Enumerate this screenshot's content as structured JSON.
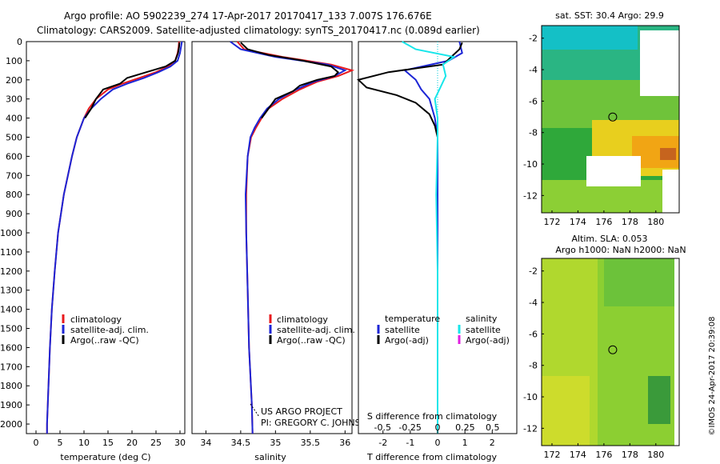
{
  "header": {
    "line1": "Argo profile: AO 5902239_274 17-Apr-2017 20170417_133 7.007S 176.676E",
    "line2": "Climatology: CARS2009. Satellite-adjusted climatology: synTS_20170417.nc (0.089d earlier)"
  },
  "depth_ticks": [
    "0",
    "100",
    "200",
    "300",
    "400",
    "500",
    "600",
    "700",
    "800",
    "900",
    "1000",
    "1100",
    "1200",
    "1300",
    "1400",
    "1500",
    "1600",
    "1700",
    "1800",
    "1900",
    "2000"
  ],
  "colors": {
    "climatology": "#e8191c",
    "satellite": "#1c25d6",
    "argo": "#000000",
    "salinity_sat": "#17e6ea",
    "salinity_argo": "#e020e0",
    "zero_line": "#00c8d8"
  },
  "chart_data": [
    {
      "type": "line",
      "id": "temperature",
      "xlabel": "temperature (deg C)",
      "xlim": [
        -2,
        31
      ],
      "ylim": [
        2050,
        0
      ],
      "xticks": [
        "0",
        "5",
        "10",
        "15",
        "20",
        "25",
        "30"
      ],
      "legend": [
        "climatology",
        "satellite-adj. clim.",
        "Argo(..raw -QC)"
      ],
      "series": [
        {
          "name": "climatology",
          "color": "climatology",
          "depth": [
            0,
            30,
            60,
            100,
            130,
            160,
            190,
            220,
            250,
            300,
            350,
            400,
            500,
            600,
            800,
            1000,
            1200,
            1400,
            1600,
            1800,
            2000,
            2050
          ],
          "values": [
            29.8,
            29.7,
            29.5,
            29,
            27.5,
            25,
            21.5,
            18,
            15,
            12.5,
            11,
            10,
            8.5,
            7.5,
            5.8,
            4.6,
            3.9,
            3.3,
            2.9,
            2.6,
            2.3,
            2.3
          ]
        },
        {
          "name": "satellite-adj. clim.",
          "color": "satellite",
          "depth": [
            0,
            30,
            60,
            100,
            130,
            160,
            190,
            220,
            250,
            300,
            350,
            400,
            500,
            600,
            800,
            1000,
            1200,
            1400,
            1600,
            1800,
            2000,
            2050
          ],
          "values": [
            30.4,
            30.2,
            30,
            29.5,
            28,
            25.5,
            22.5,
            19,
            16,
            13.5,
            11.5,
            10,
            8.5,
            7.5,
            5.8,
            4.6,
            3.9,
            3.3,
            2.9,
            2.6,
            2.3,
            2.3
          ]
        },
        {
          "name": "Argo(..raw -QC)",
          "color": "argo",
          "depth": [
            5,
            30,
            60,
            100,
            130,
            160,
            190,
            220,
            250,
            300,
            350,
            400
          ],
          "values": [
            29.9,
            29.8,
            29.6,
            29,
            27,
            23,
            19,
            17.5,
            14,
            12.5,
            11.5,
            10.2
          ]
        }
      ]
    },
    {
      "type": "line",
      "id": "salinity",
      "xlabel": "salinity",
      "xlim": [
        33.8,
        36.1
      ],
      "ylim": [
        2050,
        0
      ],
      "xticks": [
        "34",
        "34.5",
        "35",
        "35.5",
        "36"
      ],
      "legend": [
        "climatology",
        "satellite-adj. clim.",
        "Argo(..raw -QC)"
      ],
      "series": [
        {
          "name": "climatology",
          "color": "climatology",
          "depth": [
            0,
            40,
            80,
            120,
            150,
            180,
            210,
            250,
            300,
            350,
            400,
            450,
            500,
            600,
            800,
            1000,
            1300,
            1600,
            1900,
            2050
          ],
          "values": [
            34.45,
            34.55,
            35.1,
            35.8,
            36.1,
            35.9,
            35.6,
            35.35,
            35.1,
            34.9,
            34.8,
            34.72,
            34.65,
            34.6,
            34.58,
            34.58,
            34.6,
            34.62,
            34.66,
            34.67
          ]
        },
        {
          "name": "satellite-adj. clim.",
          "color": "satellite",
          "depth": [
            0,
            40,
            80,
            120,
            150,
            180,
            210,
            250,
            300,
            350,
            400,
            450,
            500,
            600,
            800,
            1000,
            1300,
            1600,
            1900,
            2050
          ],
          "values": [
            34.35,
            34.5,
            35,
            35.75,
            36,
            35.85,
            35.55,
            35.3,
            35.05,
            34.88,
            34.78,
            34.7,
            34.64,
            34.6,
            34.57,
            34.58,
            34.6,
            34.62,
            34.66,
            34.67
          ]
        },
        {
          "name": "Argo(..raw -QC)",
          "color": "argo",
          "depth": [
            5,
            40,
            70,
            100,
            130,
            160,
            180,
            200,
            230,
            260,
            300,
            350,
            400
          ],
          "values": [
            34.5,
            34.6,
            34.9,
            35.4,
            35.8,
            35.9,
            35.85,
            35.6,
            35.35,
            35.25,
            35,
            34.9,
            34.8
          ]
        }
      ]
    },
    {
      "type": "line",
      "id": "difference",
      "xlabel": "T difference from climatology",
      "xlabel_top": "S difference from climatology",
      "xlim": [
        -2.9,
        2.9
      ],
      "ylim": [
        2050,
        0
      ],
      "xticks": [
        "-2",
        "-1",
        "0",
        "1",
        "2"
      ],
      "xticks_top": [
        "-0.5",
        "-0.25",
        "0",
        "0.25",
        "0.5"
      ],
      "legend_header": [
        "temperature",
        "salinity"
      ],
      "legend_temperature": [
        "satellite",
        "Argo(-adj)"
      ],
      "legend_salinity": [
        "satellite",
        "Argo(-adj)"
      ],
      "series": [
        {
          "name": "T satellite",
          "color": "satellite",
          "depth": [
            0,
            60,
            100,
            150,
            200,
            250,
            300,
            400,
            500,
            700,
            900,
            1200,
            1600,
            2000,
            2050
          ],
          "values": [
            0.8,
            0.9,
            0.4,
            -1.2,
            -0.8,
            -0.6,
            -0.3,
            -0.1,
            0,
            0,
            0,
            0,
            0,
            0,
            0
          ]
        },
        {
          "name": "T Argo(-adj)",
          "color": "argo",
          "depth": [
            5,
            40,
            80,
            120,
            160,
            200,
            240,
            280,
            320,
            380,
            440,
            500
          ],
          "values": [
            0.9,
            0.8,
            0.5,
            0.2,
            -1.8,
            -2.9,
            -2.6,
            -1.5,
            -0.8,
            -0.3,
            -0.1,
            0
          ]
        },
        {
          "name": "S satellite",
          "color": "salinity_sat",
          "depth": [
            0,
            40,
            80,
            120,
            180,
            240,
            300,
            400,
            500,
            800,
            1200,
            1600,
            2000,
            2050
          ],
          "values": [
            -1.3,
            -0.8,
            0.6,
            0.2,
            0.3,
            0.1,
            -0.1,
            0,
            0,
            -0.05,
            0,
            0,
            0,
            0
          ]
        },
        {
          "name": "S Argo(-adj)",
          "color": "salinity_argo",
          "depth": [],
          "values": []
        }
      ]
    },
    {
      "type": "heatmap",
      "id": "sst_map",
      "title": "sat. SST: 30.4  Argo: 29.9",
      "xticks": [
        "172",
        "174",
        "176",
        "178",
        "180"
      ],
      "yticks": [
        "-2",
        "-4",
        "-6",
        "-8",
        "-10",
        "-12"
      ],
      "xlim": [
        171.2,
        181.8
      ],
      "ylim": [
        -13.1,
        -1.2
      ],
      "argo_position": [
        176.676,
        -7.007
      ]
    },
    {
      "type": "heatmap",
      "id": "sla_map",
      "title_line1": "Altim. SLA: 0.053",
      "title_line2": "Argo h1000: NaN h2000: NaN",
      "xticks": [
        "172",
        "174",
        "176",
        "178",
        "180"
      ],
      "yticks": [
        "-2",
        "-4",
        "-6",
        "-8",
        "-10",
        "-12"
      ],
      "xlim": [
        171.2,
        181.8
      ],
      "ylim": [
        -13.1,
        -1.2
      ],
      "argo_position": [
        176.676,
        -7.007
      ]
    }
  ],
  "annotations": {
    "project": "US ARGO PROJECT",
    "pi": "PI: GREGORY C. JOHNSON",
    "imos": "©IMOS 24-Apr-2017 20:39:08"
  }
}
